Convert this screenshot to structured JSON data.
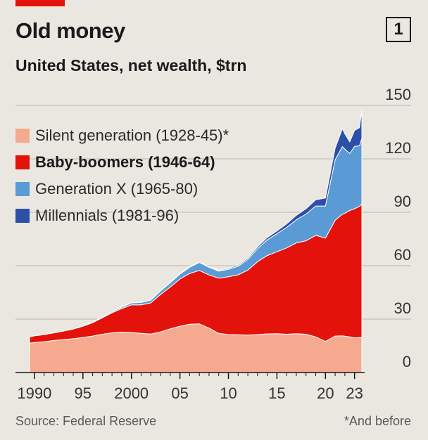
{
  "header": {
    "title": "Old money",
    "badge": "1",
    "subtitle": "United States, net wealth, $trn"
  },
  "footer": {
    "source": "Source: Federal Reserve",
    "note": "*And before"
  },
  "chart_data": {
    "type": "area",
    "stacked": true,
    "title": "Old money",
    "subtitle": "United States, net wealth, $trn",
    "ylim": [
      0,
      150
    ],
    "yticks": [
      0,
      30,
      60,
      90,
      120,
      150
    ],
    "y_axis_side": "right",
    "xlim": [
      1989.5,
      2023.75
    ],
    "xticks": [
      {
        "value": 1990,
        "label": "1990"
      },
      {
        "value": 1995,
        "label": "95"
      },
      {
        "value": 2000,
        "label": "2000"
      },
      {
        "value": 2005,
        "label": "05"
      },
      {
        "value": 2010,
        "label": "10"
      },
      {
        "value": 2015,
        "label": "15"
      },
      {
        "value": 2020,
        "label": "20"
      },
      {
        "value": 2023,
        "label": "23"
      }
    ],
    "grid": true,
    "legend_position": "top-left",
    "x": [
      1989.5,
      1990,
      1991,
      1992,
      1993,
      1994,
      1995,
      1996,
      1997,
      1998,
      1999,
      2000,
      2001,
      2002,
      2003,
      2004,
      2005,
      2006,
      2007,
      2008,
      2009,
      2010,
      2011,
      2012,
      2013,
      2014,
      2015,
      2016,
      2017,
      2018,
      2019,
      2020,
      2021,
      2021.75,
      2022,
      2022.5,
      2023,
      2023.5,
      2023.75
    ],
    "series": [
      {
        "name": "Silent generation (1928-45)*",
        "color": "#f5a98f",
        "values": [
          16.5,
          16.8,
          17.3,
          18,
          18.5,
          19,
          19.7,
          20.5,
          21.5,
          22.3,
          22.7,
          22.5,
          22,
          21.6,
          22.8,
          24.5,
          26,
          27.1,
          27.3,
          25,
          22,
          21.3,
          21.2,
          21,
          21.3,
          21.7,
          21.8,
          21.5,
          21.8,
          21.5,
          20,
          17.5,
          20.5,
          20.6,
          20.4,
          20,
          19.5,
          19.6,
          19.7
        ]
      },
      {
        "name": "Baby-boomers (1946-64)",
        "color": "#e3120b",
        "values": [
          3.5,
          3.8,
          4,
          4.3,
          4.8,
          5.4,
          6.3,
          7.5,
          9.3,
          11.2,
          13.2,
          15.5,
          16,
          17.5,
          21,
          23.5,
          26.5,
          28.5,
          30,
          29.8,
          31,
          32.5,
          33.7,
          36.5,
          41,
          44,
          46,
          48.5,
          51,
          52.5,
          57,
          58,
          65,
          68.3,
          69.1,
          71,
          72.5,
          73.7,
          75
        ]
      },
      {
        "name": "Generation X (1965-80)",
        "color": "#5b9bd5",
        "values": [
          0,
          0,
          0,
          0,
          0,
          0.1,
          0.2,
          0.3,
          0.4,
          0.6,
          0.8,
          1.1,
          1.3,
          1.6,
          2,
          2.4,
          2.8,
          3.5,
          4.5,
          4.3,
          4,
          4.2,
          4.8,
          6,
          7.3,
          8.8,
          10.2,
          11.5,
          13,
          15,
          16.5,
          18,
          34,
          38,
          36,
          32,
          35,
          34,
          36.7
        ]
      },
      {
        "name": "Millennials (1981-96)",
        "color": "#2e4fa8",
        "values": [
          0,
          0,
          0,
          0,
          0,
          0,
          0,
          0,
          0,
          0,
          0.1,
          0.1,
          0.1,
          0.1,
          0.1,
          0.2,
          0.3,
          0.4,
          0.5,
          0.4,
          0.4,
          0.5,
          0.6,
          0.8,
          1,
          1.3,
          1.5,
          2,
          2.5,
          3,
          3.5,
          4.5,
          6.5,
          10.1,
          8.5,
          6.5,
          9,
          10.2,
          15.6
        ]
      }
    ]
  }
}
